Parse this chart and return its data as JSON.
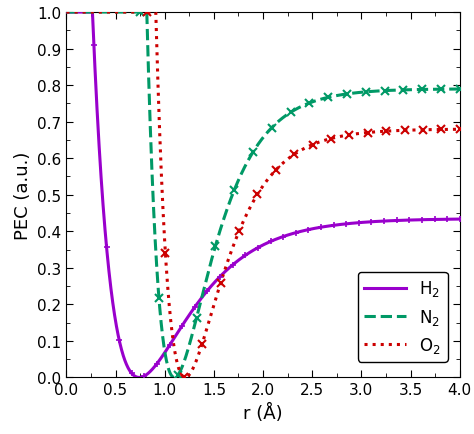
{
  "xlabel": "r (Å)",
  "ylabel": "PEC (a.u.)",
  "xlim": [
    0.0,
    4.0
  ],
  "ylim": [
    0.0,
    1.0
  ],
  "xticks": [
    0.0,
    0.5,
    1.0,
    1.5,
    2.0,
    2.5,
    3.0,
    3.5,
    4.0
  ],
  "yticks": [
    0.0,
    0.1,
    0.2,
    0.3,
    0.4,
    0.5,
    0.6,
    0.7,
    0.8,
    0.9,
    1.0
  ],
  "H2": {
    "label": "H$_2$",
    "color": "#9900cc",
    "linestyle": "-",
    "linewidth": 2.2,
    "marker": "+",
    "markersize": 5,
    "markeredgewidth": 1.2,
    "r_eq": 0.741,
    "D_e": 0.435,
    "alpha": 1.94,
    "r_start": 0.28,
    "n_marks": 30
  },
  "N2": {
    "label": "N$_2$",
    "color": "#009966",
    "linestyle": "--",
    "linewidth": 2.2,
    "marker": "x",
    "markersize": 6,
    "markeredgewidth": 1.5,
    "r_eq": 1.098,
    "D_e": 0.79,
    "alpha": 2.69,
    "r_start": 0.75,
    "n_marks": 18
  },
  "O2": {
    "label": "O$_2$",
    "color": "#cc0000",
    "linestyle": ":",
    "linewidth": 2.2,
    "marker": "x",
    "markersize": 6,
    "markeredgewidth": 1.5,
    "r_eq": 1.208,
    "D_e": 0.68,
    "alpha": 2.66,
    "r_start": 0.82,
    "n_marks": 18
  },
  "legend_labels": [
    "H$_2$",
    "N$_2$",
    "O$_2$"
  ],
  "legend_colors": [
    "#9900cc",
    "#009966",
    "#cc0000"
  ],
  "legend_linestyles": [
    "-",
    "--",
    ":"
  ]
}
